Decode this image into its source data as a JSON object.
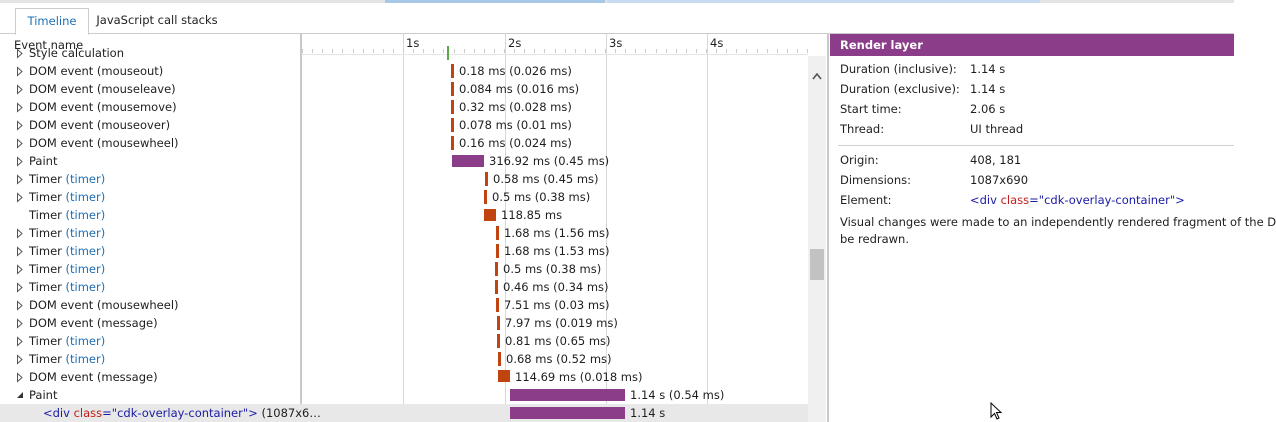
{
  "tabs": [
    "Timeline",
    "JavaScript call stacks"
  ],
  "event_list": {
    "header": "Event name",
    "rows": [
      {
        "name": "Style calculation"
      },
      {
        "name": "DOM event (mouseout)",
        "bar_label": "0.18 ms (0.026 ms)"
      },
      {
        "name": "DOM event (mouseleave)",
        "bar_label": "0.084 ms (0.016 ms)"
      },
      {
        "name": "DOM event (mousemove)",
        "bar_label": "0.32 ms (0.028 ms)"
      },
      {
        "name": "DOM event (mouseover)",
        "bar_label": "0.078 ms (0.01 ms)"
      },
      {
        "name": "DOM event (mousewheel)",
        "bar_label": "0.16 ms (0.024 ms)"
      },
      {
        "name": "Paint",
        "bar_label": "316.92 ms (0.45 ms)"
      },
      {
        "name": "Timer",
        "link": "(timer)",
        "bar_label": "0.58 ms (0.45 ms)"
      },
      {
        "name": "Timer",
        "link": "(timer)",
        "bar_label": "0.5 ms (0.38 ms)"
      },
      {
        "name": "Timer",
        "link": "(timer)",
        "bar_label": "118.85 ms"
      },
      {
        "name": "Timer",
        "link": "(timer)",
        "bar_label": "1.68 ms (1.56 ms)"
      },
      {
        "name": "Timer",
        "link": "(timer)",
        "bar_label": "1.68 ms (1.53 ms)"
      },
      {
        "name": "Timer",
        "link": "(timer)",
        "bar_label": "0.5 ms (0.38 ms)"
      },
      {
        "name": "Timer",
        "link": "(timer)",
        "bar_label": "0.46 ms (0.34 ms)"
      },
      {
        "name": "DOM event (mousewheel)",
        "bar_label": "7.51 ms (0.03 ms)"
      },
      {
        "name": "DOM event (message)",
        "bar_label": "7.97 ms (0.019 ms)"
      },
      {
        "name": "Timer",
        "link": "(timer)",
        "bar_label": "0.81 ms (0.65 ms)"
      },
      {
        "name": "Timer",
        "link": "(timer)",
        "bar_label": "0.68 ms (0.52 ms)"
      },
      {
        "name": "DOM event (message)",
        "bar_label": "114.69 ms (0.018 ms)"
      },
      {
        "name": "Paint",
        "bar_label": "1.14 s (0.54 ms)"
      },
      {
        "parts": [
          {
            "text": "<div",
            "style": "tag"
          },
          {
            "text": " class",
            "style": "attr"
          },
          {
            "text": "=",
            "style": "tag"
          },
          {
            "text": "\"cdk-overlay-container\"",
            "style": "val"
          },
          {
            "text": ">",
            "style": "tag"
          }
        ],
        "suffix": " (1087x6…",
        "bar_label": "1.14 s"
      }
    ]
  },
  "ruler": {
    "ticks": [
      "1s",
      "2s",
      "3s",
      "4s"
    ]
  },
  "details": {
    "title": "Render layer",
    "properties": [
      {
        "label": "Duration (inclusive):",
        "value": "1.14 s"
      },
      {
        "label": "Duration (exclusive):",
        "value": "1.14 s"
      },
      {
        "label": "Start time:",
        "value": "2.06 s"
      },
      {
        "label": "Thread:",
        "value": "UI thread"
      }
    ],
    "layer_properties": [
      {
        "label": "Origin:",
        "value": "408, 181"
      },
      {
        "label": "Dimensions:",
        "value": "1087x690"
      }
    ],
    "element": {
      "label": "Element:",
      "parts": [
        {
          "text": "<div",
          "style": "tag"
        },
        {
          "text": " class",
          "style": "attr"
        },
        {
          "text": "=",
          "style": "tag"
        },
        {
          "text": "\"cdk-overlay-container\"",
          "style": "val"
        },
        {
          "text": ">",
          "style": "tag"
        }
      ]
    },
    "description": [
      "Visual changes were made to an independently rendered fragment of the D",
      "be redrawn."
    ]
  }
}
